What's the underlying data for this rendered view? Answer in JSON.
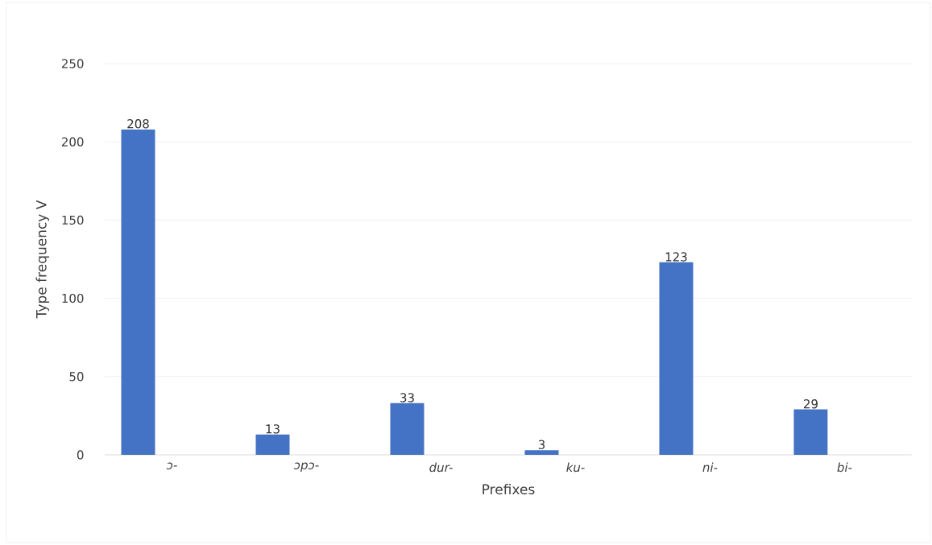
{
  "chart_data": {
    "type": "bar",
    "xlabel": "Prefixes",
    "ylabel": "Type frequency V",
    "categories": [
      "ɔ-",
      "ɔpɔ-",
      "dur-",
      "ku-",
      "ni-",
      "bi-"
    ],
    "values": [
      208,
      13,
      33,
      3,
      123,
      29
    ],
    "color": "#4472c4",
    "ylim": [
      0,
      250
    ],
    "yticks": [
      0,
      50,
      100,
      150,
      200,
      250
    ],
    "grid": "y",
    "data_labels": true
  }
}
